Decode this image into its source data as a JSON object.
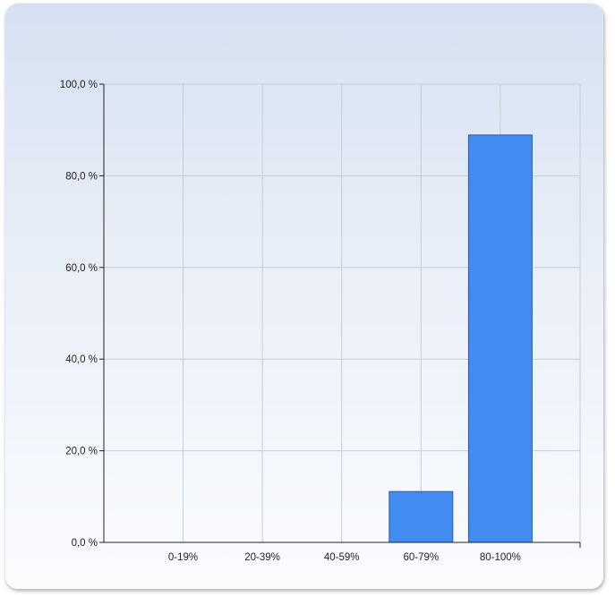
{
  "chart_data": {
    "type": "bar",
    "categories": [
      "0-19%",
      "20-39%",
      "40-59%",
      "60-79%",
      "80-100%"
    ],
    "values": [
      0,
      0,
      0,
      11.1,
      88.9
    ],
    "ylim": [
      0,
      100
    ],
    "y_ticks": [
      "0,0 %",
      "20,0 %",
      "40,0 %",
      "60,0 %",
      "80,0 %",
      "100,0 %"
    ],
    "grid": true,
    "legend": "none",
    "bar_color": "#428bf0",
    "bar_stroke": "#2c5e9e"
  }
}
